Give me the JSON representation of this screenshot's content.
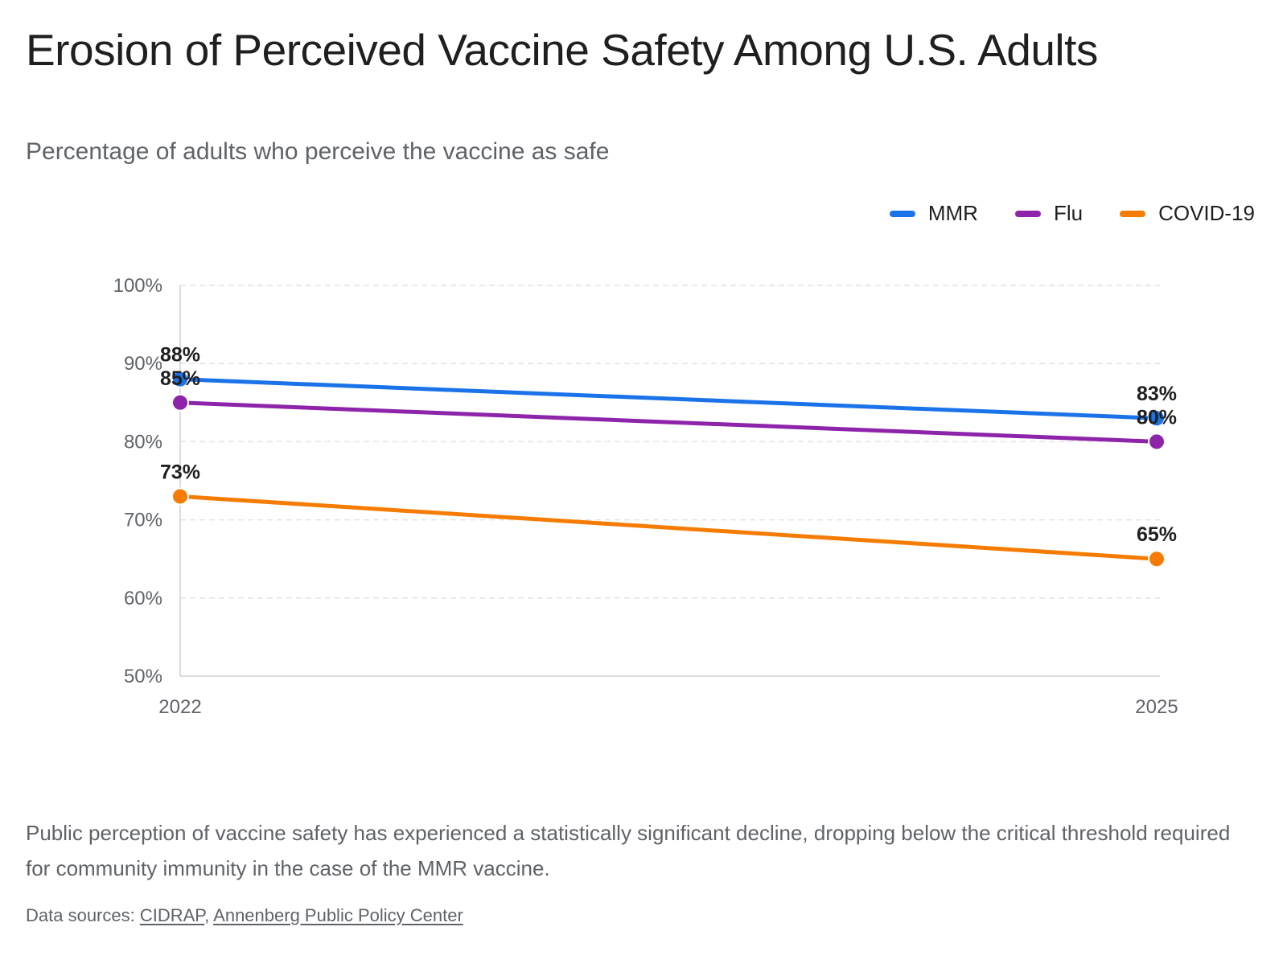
{
  "header": {
    "title": "Erosion of Perceived Vaccine Safety Among U.S. Adults",
    "subtitle": "Percentage of adults who perceive the vaccine as safe"
  },
  "chart_data": {
    "type": "line",
    "x": [
      "2022",
      "2025"
    ],
    "series": [
      {
        "name": "MMR",
        "values": [
          88,
          83
        ],
        "color": "#1a73e8"
      },
      {
        "name": "Flu",
        "values": [
          85,
          80
        ],
        "color": "#8e24aa"
      },
      {
        "name": "COVID-19",
        "values": [
          73,
          65
        ],
        "color": "#f57c00"
      }
    ],
    "ylim": [
      50,
      100
    ],
    "yticks": [
      50,
      60,
      70,
      80,
      90,
      100
    ],
    "ytick_suffix": "%",
    "data_label_suffix": "%",
    "grid": true,
    "legend_position": "top-right"
  },
  "footer": {
    "description": "Public perception of vaccine safety has experienced a statistically significant decline, dropping below the critical threshold required for community immunity in the case of the MMR vaccine.",
    "sources_prefix": "Data sources: ",
    "sources_separator": ", ",
    "sources": [
      "CIDRAP",
      "Annenberg Public Policy Center"
    ]
  }
}
